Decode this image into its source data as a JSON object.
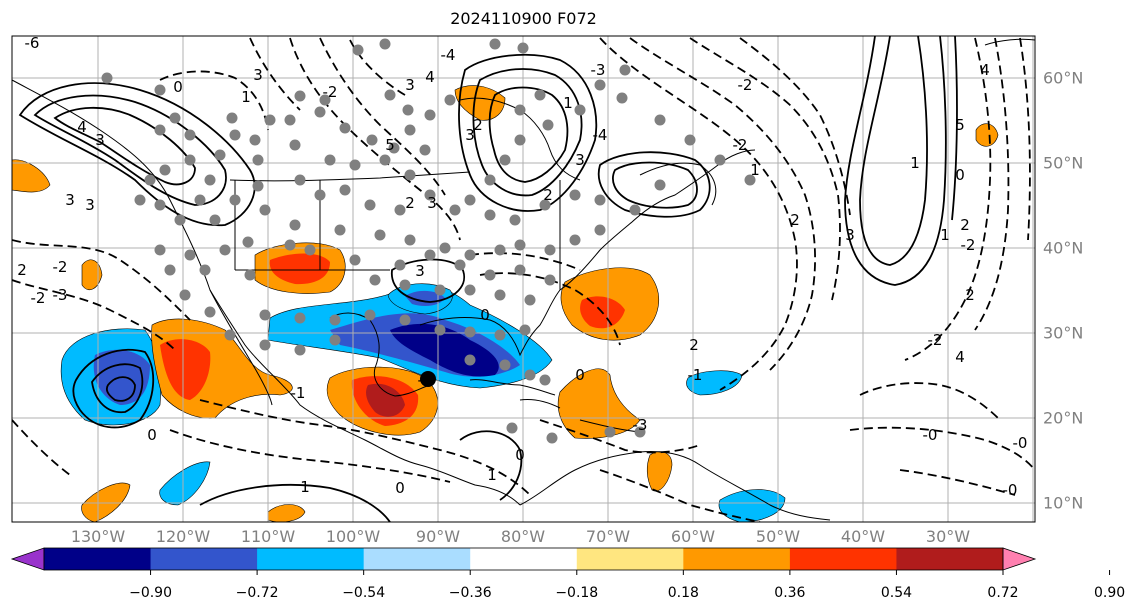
{
  "title": "2024110900 F072",
  "lon_labels": [
    "130°W",
    "120°W",
    "110°W",
    "100°W",
    "90°W",
    "80°W",
    "70°W",
    "60°W",
    "50°W",
    "40°W",
    "30°W"
  ],
  "lat_labels": [
    "60°N",
    "50°N",
    "40°N",
    "30°N",
    "20°N",
    "10°N"
  ],
  "contour_labels": [
    "-6",
    "3",
    "1",
    "0",
    "4",
    "3",
    "-3",
    "3",
    "3",
    "-4",
    "4",
    "3",
    "-2",
    "2",
    "-3",
    "5",
    "3",
    "3",
    "2",
    "2",
    "3",
    "1",
    "-4",
    "1",
    "-2",
    "3",
    "2",
    "4",
    "5",
    "0",
    "2",
    "-2",
    "1",
    "1",
    "-2",
    "2",
    "-2",
    "4",
    "3",
    "0",
    "2",
    "-1",
    "-3",
    "0",
    "1",
    "0",
    "1",
    "-1",
    "-1",
    "0",
    "-2",
    "-2",
    "2",
    "0",
    "-0",
    "-0",
    "-0"
  ],
  "colorbar": {
    "ticks": [
      "−0.90",
      "−0.72",
      "−0.54",
      "−0.36",
      "−0.18",
      "0.18",
      "0.36",
      "0.54",
      "0.72",
      "0.90"
    ],
    "colors": [
      "#9933cc",
      "#000088",
      "#3355cc",
      "#00bbff",
      "#aaddff",
      "#ffffff",
      "#ffe680",
      "#ff9900",
      "#ff3300",
      "#b01c1c",
      "#ff80b0"
    ]
  },
  "colors": {
    "deep_negative": "#000088",
    "strong_negative": "#3355cc",
    "negative": "#00bbff",
    "light_negative": "#aaddff",
    "light_positive": "#ffe680",
    "positive": "#ff9900",
    "strong_positive": "#ff3300",
    "deep_positive": "#b01c1c",
    "gray_dots": "#808080",
    "grid": "#b0b0b0"
  }
}
